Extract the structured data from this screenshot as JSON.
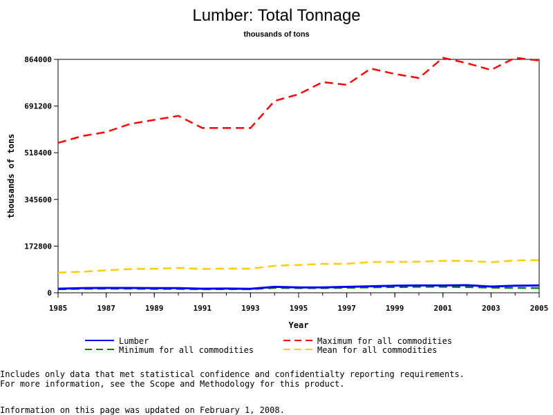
{
  "chart_data": {
    "type": "line",
    "title": "Lumber: Total Tonnage",
    "subtitle": "thousands of tons",
    "xlabel": "Year",
    "ylabel": "thousands of tons",
    "x": [
      1985,
      1986,
      1987,
      1988,
      1989,
      1990,
      1991,
      1992,
      1993,
      1994,
      1995,
      1996,
      1997,
      1998,
      1999,
      2000,
      2001,
      2002,
      2003,
      2004,
      2005
    ],
    "xticks": [
      1985,
      1987,
      1989,
      1991,
      1993,
      1995,
      1997,
      1999,
      2001,
      2003,
      2005
    ],
    "yticks": [
      0,
      172800,
      345600,
      518400,
      691200,
      864000
    ],
    "xlim": [
      1985,
      2005
    ],
    "ylim": [
      0,
      864000
    ],
    "series": [
      {
        "name": "Lumber",
        "color": "#0000ff",
        "dash": "solid",
        "values": [
          15000,
          17500,
          18000,
          18000,
          17000,
          17000,
          15000,
          15500,
          14500,
          22000,
          20000,
          20000,
          22000,
          24000,
          26000,
          27000,
          27000,
          28000,
          23000,
          26000,
          27000
        ]
      },
      {
        "name": "Maximum for all commodities",
        "color": "#ff0000",
        "dash": "dashed",
        "values": [
          555000,
          580000,
          595000,
          625000,
          640000,
          655000,
          610000,
          610000,
          610000,
          710000,
          735000,
          780000,
          770000,
          830000,
          810000,
          795000,
          870000,
          850000,
          825000,
          870000,
          860000
        ]
      },
      {
        "name": "Minimum for all commodities",
        "color": "#008000",
        "dash": "dashed",
        "values": [
          13000,
          14500,
          15000,
          15000,
          14000,
          14000,
          13000,
          13500,
          13000,
          18000,
          17000,
          17000,
          18500,
          20000,
          21000,
          22000,
          22000,
          21000,
          19000,
          18000,
          17500
        ]
      },
      {
        "name": "Mean for all commodities",
        "color": "#ffcc00",
        "dash": "dashed",
        "values": [
          75000,
          78000,
          83000,
          88000,
          89000,
          92000,
          88000,
          90000,
          89000,
          100000,
          103000,
          107000,
          107000,
          114000,
          114000,
          115000,
          118000,
          118000,
          113000,
          120000,
          121000
        ]
      }
    ],
    "legend_placement": "bottom",
    "grid": false
  },
  "notes": {
    "line1": "Includes only data that met statistical confidence and confidentialty reporting requirements.",
    "line2": "For more information, see the Scope and Methodology for this product.",
    "updated": "Information on this page was updated on February 1, 2008."
  }
}
